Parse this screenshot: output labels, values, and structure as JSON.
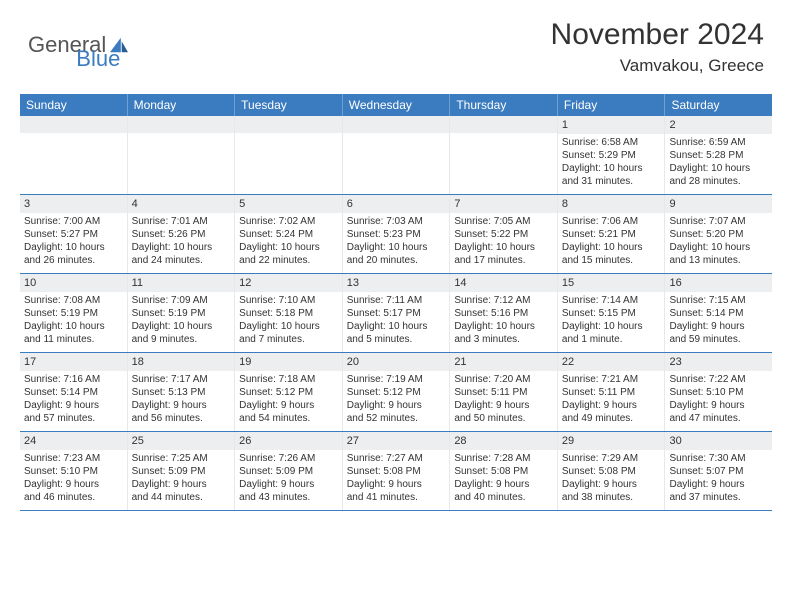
{
  "brand": {
    "part1": "General",
    "part2": "Blue"
  },
  "title": "November 2024",
  "location": "Vamvakou, Greece",
  "colors": {
    "header_bg": "#3b7bbf",
    "daynum_bg": "#eceef0",
    "week_border": "#3b7bbf"
  },
  "weekdays": [
    "Sunday",
    "Monday",
    "Tuesday",
    "Wednesday",
    "Thursday",
    "Friday",
    "Saturday"
  ],
  "weeks": [
    [
      {
        "day": "",
        "lines": [
          "",
          "",
          "",
          ""
        ]
      },
      {
        "day": "",
        "lines": [
          "",
          "",
          "",
          ""
        ]
      },
      {
        "day": "",
        "lines": [
          "",
          "",
          "",
          ""
        ]
      },
      {
        "day": "",
        "lines": [
          "",
          "",
          "",
          ""
        ]
      },
      {
        "day": "",
        "lines": [
          "",
          "",
          "",
          ""
        ]
      },
      {
        "day": "1",
        "lines": [
          "Sunrise: 6:58 AM",
          "Sunset: 5:29 PM",
          "Daylight: 10 hours",
          "and 31 minutes."
        ]
      },
      {
        "day": "2",
        "lines": [
          "Sunrise: 6:59 AM",
          "Sunset: 5:28 PM",
          "Daylight: 10 hours",
          "and 28 minutes."
        ]
      }
    ],
    [
      {
        "day": "3",
        "lines": [
          "Sunrise: 7:00 AM",
          "Sunset: 5:27 PM",
          "Daylight: 10 hours",
          "and 26 minutes."
        ]
      },
      {
        "day": "4",
        "lines": [
          "Sunrise: 7:01 AM",
          "Sunset: 5:26 PM",
          "Daylight: 10 hours",
          "and 24 minutes."
        ]
      },
      {
        "day": "5",
        "lines": [
          "Sunrise: 7:02 AM",
          "Sunset: 5:24 PM",
          "Daylight: 10 hours",
          "and 22 minutes."
        ]
      },
      {
        "day": "6",
        "lines": [
          "Sunrise: 7:03 AM",
          "Sunset: 5:23 PM",
          "Daylight: 10 hours",
          "and 20 minutes."
        ]
      },
      {
        "day": "7",
        "lines": [
          "Sunrise: 7:05 AM",
          "Sunset: 5:22 PM",
          "Daylight: 10 hours",
          "and 17 minutes."
        ]
      },
      {
        "day": "8",
        "lines": [
          "Sunrise: 7:06 AM",
          "Sunset: 5:21 PM",
          "Daylight: 10 hours",
          "and 15 minutes."
        ]
      },
      {
        "day": "9",
        "lines": [
          "Sunrise: 7:07 AM",
          "Sunset: 5:20 PM",
          "Daylight: 10 hours",
          "and 13 minutes."
        ]
      }
    ],
    [
      {
        "day": "10",
        "lines": [
          "Sunrise: 7:08 AM",
          "Sunset: 5:19 PM",
          "Daylight: 10 hours",
          "and 11 minutes."
        ]
      },
      {
        "day": "11",
        "lines": [
          "Sunrise: 7:09 AM",
          "Sunset: 5:19 PM",
          "Daylight: 10 hours",
          "and 9 minutes."
        ]
      },
      {
        "day": "12",
        "lines": [
          "Sunrise: 7:10 AM",
          "Sunset: 5:18 PM",
          "Daylight: 10 hours",
          "and 7 minutes."
        ]
      },
      {
        "day": "13",
        "lines": [
          "Sunrise: 7:11 AM",
          "Sunset: 5:17 PM",
          "Daylight: 10 hours",
          "and 5 minutes."
        ]
      },
      {
        "day": "14",
        "lines": [
          "Sunrise: 7:12 AM",
          "Sunset: 5:16 PM",
          "Daylight: 10 hours",
          "and 3 minutes."
        ]
      },
      {
        "day": "15",
        "lines": [
          "Sunrise: 7:14 AM",
          "Sunset: 5:15 PM",
          "Daylight: 10 hours",
          "and 1 minute."
        ]
      },
      {
        "day": "16",
        "lines": [
          "Sunrise: 7:15 AM",
          "Sunset: 5:14 PM",
          "Daylight: 9 hours",
          "and 59 minutes."
        ]
      }
    ],
    [
      {
        "day": "17",
        "lines": [
          "Sunrise: 7:16 AM",
          "Sunset: 5:14 PM",
          "Daylight: 9 hours",
          "and 57 minutes."
        ]
      },
      {
        "day": "18",
        "lines": [
          "Sunrise: 7:17 AM",
          "Sunset: 5:13 PM",
          "Daylight: 9 hours",
          "and 56 minutes."
        ]
      },
      {
        "day": "19",
        "lines": [
          "Sunrise: 7:18 AM",
          "Sunset: 5:12 PM",
          "Daylight: 9 hours",
          "and 54 minutes."
        ]
      },
      {
        "day": "20",
        "lines": [
          "Sunrise: 7:19 AM",
          "Sunset: 5:12 PM",
          "Daylight: 9 hours",
          "and 52 minutes."
        ]
      },
      {
        "day": "21",
        "lines": [
          "Sunrise: 7:20 AM",
          "Sunset: 5:11 PM",
          "Daylight: 9 hours",
          "and 50 minutes."
        ]
      },
      {
        "day": "22",
        "lines": [
          "Sunrise: 7:21 AM",
          "Sunset: 5:11 PM",
          "Daylight: 9 hours",
          "and 49 minutes."
        ]
      },
      {
        "day": "23",
        "lines": [
          "Sunrise: 7:22 AM",
          "Sunset: 5:10 PM",
          "Daylight: 9 hours",
          "and 47 minutes."
        ]
      }
    ],
    [
      {
        "day": "24",
        "lines": [
          "Sunrise: 7:23 AM",
          "Sunset: 5:10 PM",
          "Daylight: 9 hours",
          "and 46 minutes."
        ]
      },
      {
        "day": "25",
        "lines": [
          "Sunrise: 7:25 AM",
          "Sunset: 5:09 PM",
          "Daylight: 9 hours",
          "and 44 minutes."
        ]
      },
      {
        "day": "26",
        "lines": [
          "Sunrise: 7:26 AM",
          "Sunset: 5:09 PM",
          "Daylight: 9 hours",
          "and 43 minutes."
        ]
      },
      {
        "day": "27",
        "lines": [
          "Sunrise: 7:27 AM",
          "Sunset: 5:08 PM",
          "Daylight: 9 hours",
          "and 41 minutes."
        ]
      },
      {
        "day": "28",
        "lines": [
          "Sunrise: 7:28 AM",
          "Sunset: 5:08 PM",
          "Daylight: 9 hours",
          "and 40 minutes."
        ]
      },
      {
        "day": "29",
        "lines": [
          "Sunrise: 7:29 AM",
          "Sunset: 5:08 PM",
          "Daylight: 9 hours",
          "and 38 minutes."
        ]
      },
      {
        "day": "30",
        "lines": [
          "Sunrise: 7:30 AM",
          "Sunset: 5:07 PM",
          "Daylight: 9 hours",
          "and 37 minutes."
        ]
      }
    ]
  ]
}
